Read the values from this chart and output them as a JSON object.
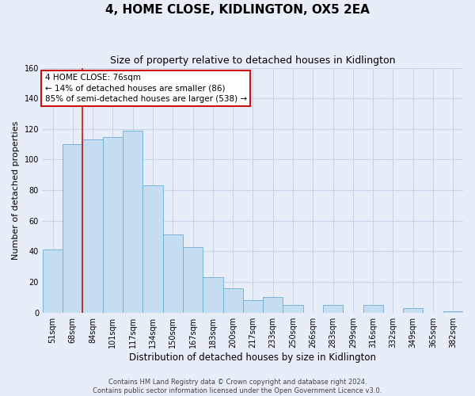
{
  "title": "4, HOME CLOSE, KIDLINGTON, OX5 2EA",
  "subtitle": "Size of property relative to detached houses in Kidlington",
  "xlabel": "Distribution of detached houses by size in Kidlington",
  "ylabel": "Number of detached properties",
  "categories": [
    "51sqm",
    "68sqm",
    "84sqm",
    "101sqm",
    "117sqm",
    "134sqm",
    "150sqm",
    "167sqm",
    "183sqm",
    "200sqm",
    "217sqm",
    "233sqm",
    "250sqm",
    "266sqm",
    "283sqm",
    "299sqm",
    "316sqm",
    "332sqm",
    "349sqm",
    "365sqm",
    "382sqm"
  ],
  "values": [
    41,
    110,
    113,
    115,
    119,
    83,
    51,
    43,
    23,
    16,
    8,
    10,
    5,
    0,
    5,
    0,
    5,
    0,
    3,
    0,
    1
  ],
  "bar_color": "#c5ddf0",
  "bar_edge_color": "#6aaed6",
  "ylim": [
    0,
    160
  ],
  "yticks": [
    0,
    20,
    40,
    60,
    80,
    100,
    120,
    140,
    160
  ],
  "vline_color": "#cc1111",
  "annotation_title": "4 HOME CLOSE: 76sqm",
  "annotation_line1": "← 14% of detached houses are smaller (86)",
  "annotation_line2": "85% of semi-detached houses are larger (538) →",
  "annotation_box_color": "#ffffff",
  "annotation_box_edge": "#cc1111",
  "footer_line1": "Contains HM Land Registry data © Crown copyright and database right 2024.",
  "footer_line2": "Contains public sector information licensed under the Open Government Licence v3.0.",
  "background_color": "#e8eef8",
  "plot_bg_color": "#e8eef8",
  "grid_color": "#c8d4e8",
  "title_fontsize": 11,
  "subtitle_fontsize": 9,
  "xlabel_fontsize": 8.5,
  "ylabel_fontsize": 8,
  "tick_fontsize": 7,
  "footer_fontsize": 6,
  "ann_fontsize": 7.5
}
